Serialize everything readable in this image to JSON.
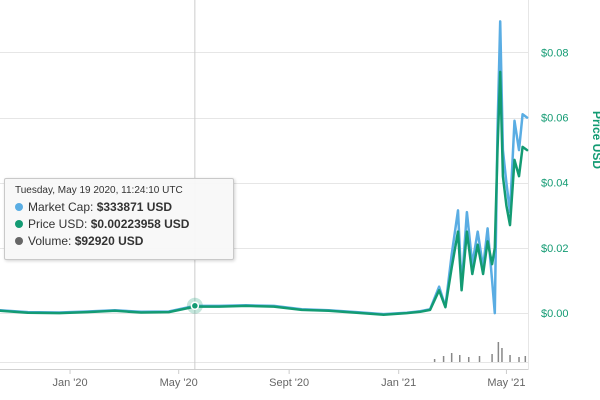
{
  "chart_data": {
    "type": "line",
    "title": "",
    "x_tick_labels": [
      "Jan '20",
      "May '20",
      "Sept '20",
      "Jan '21",
      "May '21"
    ],
    "xlim": [
      "2019-10-15",
      "2021-05-25"
    ],
    "ylabel": "Price USD",
    "y_tick_labels": [
      "$0.00",
      "$0.02",
      "$0.04",
      "$0.06",
      "$0.08"
    ],
    "ylim": [
      -0.015,
      0.093
    ],
    "grid": true,
    "legend": "none",
    "series": [
      {
        "name": "Market Cap",
        "color": "#5aade3",
        "points": [
          [
            "2019-10-15",
            0.0009
          ],
          [
            "2019-11-15",
            0.0003
          ],
          [
            "2019-12-20",
            0.0002
          ],
          [
            "2020-01-20",
            0.0005
          ],
          [
            "2020-02-20",
            0.0009
          ],
          [
            "2020-03-20",
            0.0004
          ],
          [
            "2020-04-20",
            0.0005
          ],
          [
            "2020-05-19",
            0.0022
          ],
          [
            "2020-06-15",
            0.0022
          ],
          [
            "2020-07-15",
            0.0024
          ],
          [
            "2020-08-15",
            0.0022
          ],
          [
            "2020-09-15",
            0.0012
          ],
          [
            "2020-10-15",
            0.0009
          ],
          [
            "2020-11-15",
            0.0003
          ],
          [
            "2020-12-15",
            -0.0003
          ],
          [
            "2021-01-10",
            0.0001
          ],
          [
            "2021-01-25",
            0.0006
          ],
          [
            "2021-02-05",
            0.0012
          ],
          [
            "2021-02-15",
            0.0081
          ],
          [
            "2021-02-22",
            0.002
          ],
          [
            "2021-03-01",
            0.018
          ],
          [
            "2021-03-08",
            0.0315
          ],
          [
            "2021-03-12",
            0.008
          ],
          [
            "2021-03-18",
            0.031
          ],
          [
            "2021-03-24",
            0.015
          ],
          [
            "2021-03-30",
            0.025
          ],
          [
            "2021-04-05",
            0.014
          ],
          [
            "2021-04-10",
            0.026
          ],
          [
            "2021-04-15",
            0.01
          ],
          [
            "2021-04-18",
            0.0
          ],
          [
            "2021-04-21",
            0.056
          ],
          [
            "2021-04-24",
            0.0895
          ],
          [
            "2021-04-27",
            0.05
          ],
          [
            "2021-05-01",
            0.04
          ],
          [
            "2021-05-05",
            0.031
          ],
          [
            "2021-05-10",
            0.059
          ],
          [
            "2021-05-15",
            0.05
          ],
          [
            "2021-05-19",
            0.061
          ],
          [
            "2021-05-24",
            0.06
          ]
        ]
      },
      {
        "name": "Price USD",
        "color": "#139b73",
        "points": [
          [
            "2019-10-15",
            0.0007
          ],
          [
            "2019-11-15",
            0.0001
          ],
          [
            "2019-12-20",
            0.0
          ],
          [
            "2020-01-20",
            0.0003
          ],
          [
            "2020-02-20",
            0.0007
          ],
          [
            "2020-03-20",
            0.0002
          ],
          [
            "2020-04-20",
            0.0003
          ],
          [
            "2020-05-19",
            0.002
          ],
          [
            "2020-06-15",
            0.002
          ],
          [
            "2020-07-15",
            0.0022
          ],
          [
            "2020-08-15",
            0.002
          ],
          [
            "2020-09-15",
            0.001
          ],
          [
            "2020-10-15",
            0.0007
          ],
          [
            "2020-11-15",
            0.0001
          ],
          [
            "2020-12-15",
            -0.0005
          ],
          [
            "2021-01-10",
            0.0
          ],
          [
            "2021-01-25",
            0.0004
          ],
          [
            "2021-02-05",
            0.001
          ],
          [
            "2021-02-15",
            0.007
          ],
          [
            "2021-02-22",
            0.0018
          ],
          [
            "2021-03-01",
            0.014
          ],
          [
            "2021-03-08",
            0.025
          ],
          [
            "2021-03-12",
            0.007
          ],
          [
            "2021-03-18",
            0.025
          ],
          [
            "2021-03-24",
            0.012
          ],
          [
            "2021-03-30",
            0.021
          ],
          [
            "2021-04-05",
            0.012
          ],
          [
            "2021-04-10",
            0.022
          ],
          [
            "2021-04-15",
            0.015
          ],
          [
            "2021-04-18",
            0.02
          ],
          [
            "2021-04-21",
            0.05
          ],
          [
            "2021-04-24",
            0.074
          ],
          [
            "2021-04-27",
            0.042
          ],
          [
            "2021-05-01",
            0.033
          ],
          [
            "2021-05-05",
            0.027
          ],
          [
            "2021-05-10",
            0.047
          ],
          [
            "2021-05-15",
            0.042
          ],
          [
            "2021-05-19",
            0.051
          ],
          [
            "2021-05-24",
            0.05
          ]
        ]
      }
    ],
    "volume": {
      "name": "Volume",
      "color": "#888888",
      "points": [
        [
          "2021-02-10",
          0.15
        ],
        [
          "2021-02-20",
          0.3
        ],
        [
          "2021-03-01",
          0.45
        ],
        [
          "2021-03-10",
          0.35
        ],
        [
          "2021-03-20",
          0.25
        ],
        [
          "2021-04-01",
          0.3
        ],
        [
          "2021-04-15",
          0.4
        ],
        [
          "2021-04-22",
          1.0
        ],
        [
          "2021-04-26",
          0.7
        ],
        [
          "2021-05-05",
          0.35
        ],
        [
          "2021-05-15",
          0.25
        ],
        [
          "2021-05-22",
          0.3
        ]
      ]
    },
    "hover": {
      "date": "2020-05-19",
      "value": 0.00223958
    }
  },
  "tooltip": {
    "date": "Tuesday, May 19 2020, 11:24:10 UTC",
    "market_cap_label": "Market Cap: ",
    "market_cap_value": "$333871 USD",
    "price_label": "Price USD: ",
    "price_value": "$0.00223958 USD",
    "volume_label": "Volume: ",
    "volume_value": "$92920 USD",
    "colors": {
      "market_cap": "#5aade3",
      "price": "#139b73",
      "volume": "#666666"
    }
  }
}
